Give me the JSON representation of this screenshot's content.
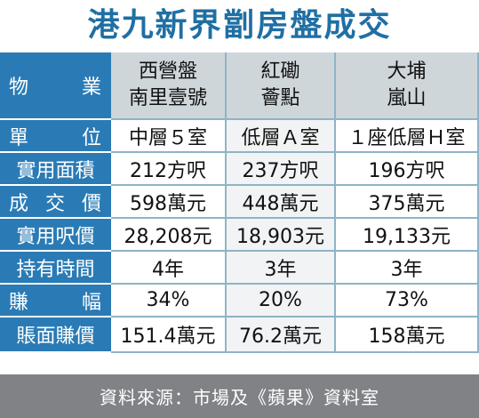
{
  "title": "港九新界劏房盤成交",
  "columns": [
    {
      "line1": "西營盤",
      "line2": "南里壹號"
    },
    {
      "line1": "紅磡",
      "line2": "薈點"
    },
    {
      "line1": "大埔",
      "line2": "嵐山"
    }
  ],
  "header_label": [
    "物",
    "業"
  ],
  "rows": [
    {
      "label": [
        "單",
        "位"
      ],
      "values": [
        "中層５室",
        "低層Ａ室",
        "１座低層Ｈ室"
      ]
    },
    {
      "label": [
        "實用面積"
      ],
      "values": [
        "212方呎",
        "237方呎",
        "196方呎"
      ]
    },
    {
      "label": [
        "成",
        "交",
        "價"
      ],
      "values": [
        "598萬元",
        "448萬元",
        "375萬元"
      ]
    },
    {
      "label": [
        "實用呎價"
      ],
      "values": [
        "28,208元",
        "18,903元",
        "19,133元"
      ]
    },
    {
      "label": [
        "持有時間"
      ],
      "values": [
        "4年",
        "3年",
        "3年"
      ]
    },
    {
      "label": [
        "賺",
        "幅"
      ],
      "values": [
        "34%",
        "20%",
        "73%"
      ]
    },
    {
      "label": [
        "賬面賺價"
      ],
      "values": [
        "151.4萬元",
        "76.2萬元",
        "158萬元"
      ]
    }
  ],
  "source": "資料來源：市場及《蘋果》資料室",
  "colors": {
    "title": "#1f6fa3",
    "label_bg": "#2a7bb5",
    "header_bg": "#cfd6da",
    "mid_col_bg": "#f1f3f4",
    "footer_bg": "#808286"
  }
}
